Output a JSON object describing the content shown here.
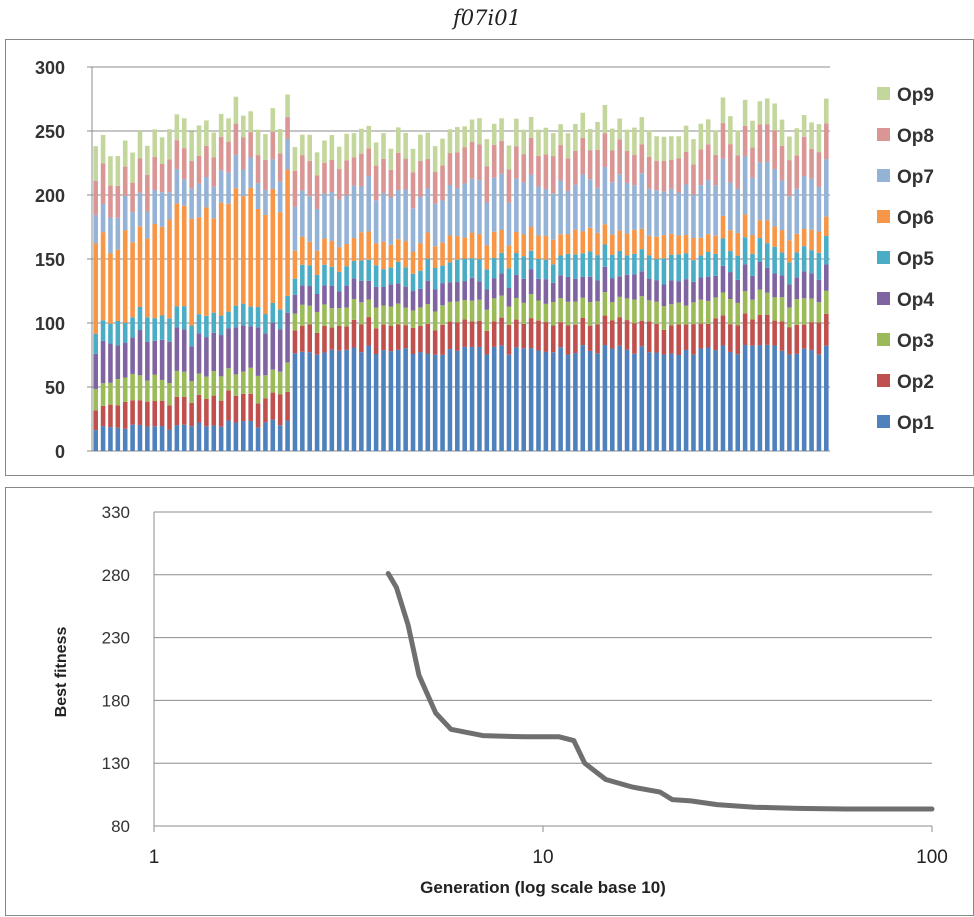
{
  "figure_title": "f07i01",
  "chart_data": [
    {
      "type": "bar",
      "stacked": true,
      "title": "",
      "xlabel": "",
      "ylabel": "",
      "ylim": [
        0,
        300
      ],
      "yticks": [
        0,
        50,
        100,
        150,
        200,
        250,
        300
      ],
      "grid": true,
      "legend_position": "right",
      "bar_count": 100,
      "series": [
        {
          "name": "Op1",
          "color": "#4f81bd",
          "phases": [
            {
              "until": 27,
              "start": 18,
              "end": 22
            },
            {
              "until": 100,
              "start": 75,
              "end": 78
            }
          ]
        },
        {
          "name": "Op2",
          "color": "#c0504d",
          "phases": [
            {
              "until": 27,
              "start": 18,
              "end": 22
            },
            {
              "until": 100,
              "start": 20,
              "end": 22
            }
          ]
        },
        {
          "name": "Op3",
          "color": "#9bbb59",
          "phases": [
            {
              "until": 27,
              "start": 18,
              "end": 20
            },
            {
              "until": 100,
              "start": 15,
              "end": 18
            }
          ]
        },
        {
          "name": "Op4",
          "color": "#8064a2",
          "phases": [
            {
              "until": 27,
              "start": 30,
              "end": 34
            },
            {
              "until": 100,
              "start": 15,
              "end": 20
            }
          ]
        },
        {
          "name": "Op5",
          "color": "#4bacc6",
          "phases": [
            {
              "until": 27,
              "start": 18,
              "end": 14
            },
            {
              "until": 100,
              "start": 14,
              "end": 20
            }
          ]
        },
        {
          "name": "Op6",
          "color": "#f79646",
          "phases": [
            {
              "until": 27,
              "start": 62,
              "end": 88
            },
            {
              "until": 100,
              "start": 20,
              "end": 15
            }
          ]
        },
        {
          "name": "Op7",
          "color": "#95b3d7",
          "phases": [
            {
              "until": 27,
              "start": 25,
              "end": 22
            },
            {
              "until": 100,
              "start": 38,
              "end": 40
            }
          ]
        },
        {
          "name": "Op8",
          "color": "#d99694",
          "phases": [
            {
              "until": 27,
              "start": 28,
              "end": 20
            },
            {
              "until": 100,
              "start": 25,
              "end": 27
            }
          ]
        },
        {
          "name": "Op9",
          "color": "#c3d69b",
          "phases": [
            {
              "until": 27,
              "start": 24,
              "end": 18
            },
            {
              "until": 100,
              "start": 18,
              "end": 20
            }
          ]
        }
      ]
    },
    {
      "type": "line",
      "title": "",
      "xlabel": "Generation (log scale base 10)",
      "ylabel": "Best fitness",
      "xscale": "log",
      "xlim": [
        1,
        100
      ],
      "ylim": [
        80,
        330
      ],
      "xticks": [
        1,
        10,
        100
      ],
      "yticks": [
        80,
        130,
        180,
        230,
        280,
        330
      ],
      "grid": true,
      "line_color": "#6f6f6f",
      "points": [
        {
          "x": 4,
          "y": 281
        },
        {
          "x": 4.2,
          "y": 270
        },
        {
          "x": 4.5,
          "y": 240
        },
        {
          "x": 4.8,
          "y": 200
        },
        {
          "x": 5.3,
          "y": 170
        },
        {
          "x": 5.8,
          "y": 157
        },
        {
          "x": 7,
          "y": 152
        },
        {
          "x": 9,
          "y": 151
        },
        {
          "x": 11,
          "y": 151
        },
        {
          "x": 12,
          "y": 148
        },
        {
          "x": 12.8,
          "y": 130
        },
        {
          "x": 14.5,
          "y": 117
        },
        {
          "x": 17,
          "y": 111
        },
        {
          "x": 20,
          "y": 107
        },
        {
          "x": 21.5,
          "y": 101
        },
        {
          "x": 24,
          "y": 100
        },
        {
          "x": 28,
          "y": 97
        },
        {
          "x": 35,
          "y": 95
        },
        {
          "x": 45,
          "y": 94
        },
        {
          "x": 60,
          "y": 93.5
        },
        {
          "x": 80,
          "y": 93.5
        },
        {
          "x": 100,
          "y": 93.5
        }
      ]
    }
  ]
}
